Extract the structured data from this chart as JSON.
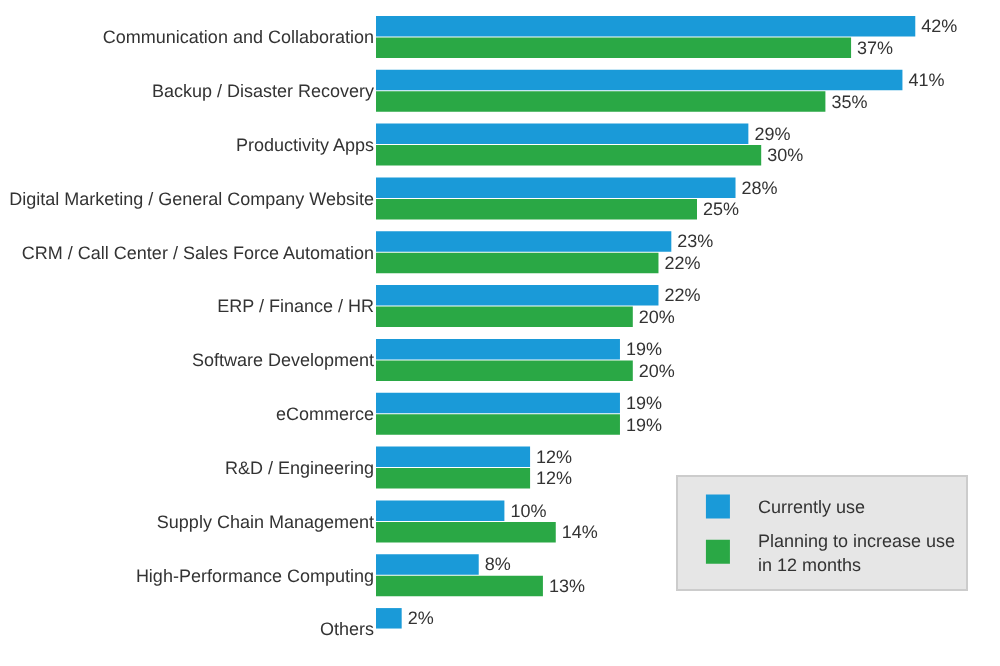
{
  "chart_data": {
    "type": "bar",
    "orientation": "horizontal",
    "legend": "bottom right",
    "categories": [
      "Communication and Collaboration",
      "Backup / Disaster Recovery",
      "Productivity Apps",
      "Digital Marketing / General Company Website",
      "CRM / Call Center / Sales Force Automation",
      "ERP / Finance / HR",
      "Software Development",
      "eCommerce",
      "R&D / Engineering",
      "Supply Chain Management",
      "High-Performance Computing",
      "Others"
    ],
    "series": [
      {
        "name": "Currently use",
        "color": "#1a9ad8",
        "values": [
          42,
          41,
          29,
          28,
          23,
          22,
          19,
          19,
          12,
          10,
          8,
          2
        ],
        "value_labels": [
          "42%",
          "41%",
          "29%",
          "28%",
          "23%",
          "22%",
          "19%",
          "19%",
          "12%",
          "10%",
          "8%",
          "2%"
        ]
      },
      {
        "name": "Planning to increase use in 12 months",
        "color": "#2aa845",
        "values": [
          37,
          35,
          30,
          25,
          22,
          20,
          20,
          19,
          12,
          14,
          13,
          null
        ],
        "value_labels": [
          "37%",
          "35%",
          "30%",
          "25%",
          "22%",
          "20%",
          "20%",
          "19%",
          "12%",
          "14%",
          "13%",
          null
        ]
      }
    ]
  }
}
